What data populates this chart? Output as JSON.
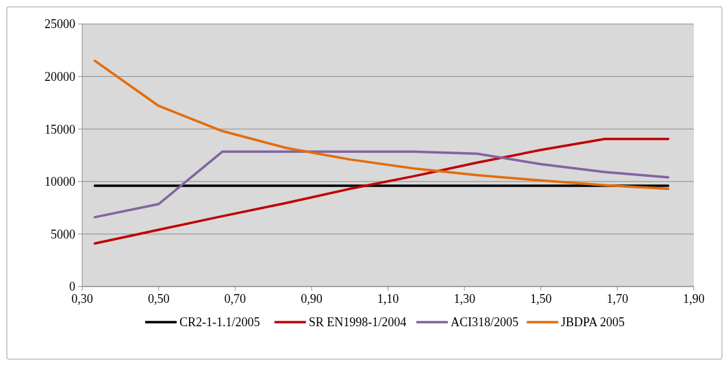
{
  "chart_data": {
    "type": "line",
    "x": [
      0.333,
      0.5,
      0.667,
      0.833,
      1,
      1.167,
      1.333,
      1.5,
      1.667,
      1.833
    ],
    "xlim": [
      0.3,
      1.9
    ],
    "xticks": [
      {
        "value": 0.3,
        "label": "0,30"
      },
      {
        "value": 0.5,
        "label": "0,50"
      },
      {
        "value": 0.7,
        "label": "0,70"
      },
      {
        "value": 0.9,
        "label": "0,90"
      },
      {
        "value": 1.1,
        "label": "1,10"
      },
      {
        "value": 1.3,
        "label": "1,30"
      },
      {
        "value": 1.5,
        "label": "1,50"
      },
      {
        "value": 1.7,
        "label": "1,70"
      },
      {
        "value": 1.9,
        "label": "1,90"
      }
    ],
    "ylim": [
      0,
      25000
    ],
    "yticks": [
      0,
      5000,
      10000,
      15000,
      20000,
      25000
    ],
    "grid": "y",
    "legend": "bottom",
    "marker": "none",
    "line_style": "solid",
    "series": [
      {
        "name": "CR2-1-1.1/2005",
        "color": "#000000",
        "values": [
          9600,
          9600,
          9600,
          9600,
          9600,
          9600,
          9600,
          9600,
          9600,
          9600
        ]
      },
      {
        "name": "SR EN1998-1/2004",
        "color": "#c00000",
        "values": [
          4100,
          5400,
          6700,
          7950,
          9300,
          10500,
          11800,
          13000,
          14050,
          14050
        ]
      },
      {
        "name": "ACI318/2005",
        "color": "#8064a2",
        "values": [
          6600,
          7850,
          12850,
          12850,
          12850,
          12850,
          12650,
          11650,
          10900,
          10400
        ]
      },
      {
        "name": "JBDPA 2005",
        "color": "#e46c0a",
        "values": [
          21500,
          17200,
          14800,
          13200,
          12100,
          11250,
          10600,
          10100,
          9650,
          9300
        ]
      }
    ]
  }
}
